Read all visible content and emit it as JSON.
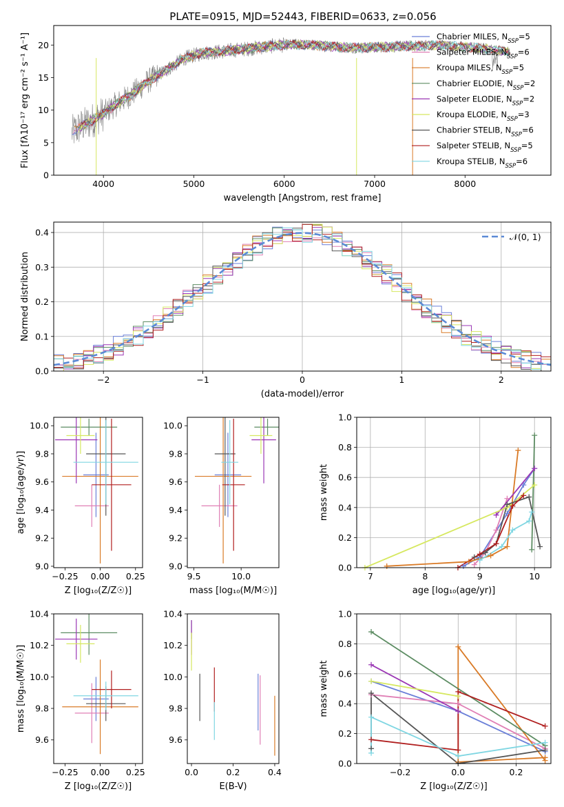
{
  "figure": {
    "title": "PLATE=0915, MJD=52443, FIBERID=0633, z=0.056",
    "palette": {
      "Chabrier MILES": "#6a7fd8",
      "Salpeter MILES": "#e07fb5",
      "Kroupa MILES": "#d97a26",
      "Chabrier ELODIE": "#5c8c62",
      "Salpeter ELODIE": "#9a36b4",
      "Kroupa ELODIE": "#d6e85f",
      "Chabrier STELIB": "#555555",
      "Salpeter STELIB": "#b01e1e",
      "Kroupa STELIB": "#7fd6e2"
    }
  },
  "chart_data": [
    {
      "type": "line",
      "id": "spectrum",
      "title": "PLATE=0915, MJD=52443, FIBERID=0633, z=0.056",
      "xlabel": "wavelength [Angstrom, rest frame]",
      "ylabel": "Flux [fλ10⁻¹⁷ erg cm⁻² s⁻¹ A⁻¹]",
      "xlim": [
        3450,
        8950
      ],
      "ylim": [
        0,
        23
      ],
      "xticks": [
        "4000",
        "5000",
        "6000",
        "7000",
        "8000"
      ],
      "yticks": [
        "0",
        "5",
        "10",
        "15",
        "20"
      ],
      "data_color": "#808080",
      "data_profile": {
        "x": [
          3650,
          3750,
          3850,
          3950,
          4050,
          4150,
          4300,
          4500,
          4700,
          4900,
          5100,
          5300,
          5500,
          5700,
          5900,
          6100,
          6300,
          6500,
          6700,
          6900,
          7100,
          7300,
          7500,
          7700,
          7900,
          8100,
          8300,
          8500
        ],
        "y": [
          6.5,
          7.5,
          8.2,
          9.0,
          10.0,
          11.0,
          12.3,
          14.5,
          16.2,
          18.0,
          18.8,
          19.0,
          19.3,
          19.6,
          19.9,
          20.1,
          20.0,
          19.8,
          19.6,
          19.6,
          19.7,
          19.8,
          19.9,
          20.0,
          19.8,
          19.6,
          19.3,
          18.9
        ]
      },
      "legend": {
        "position": "upper right",
        "entries": [
          "Chabrier MILES, N_SSP=5",
          "Salpeter MILES, N_SSP=6",
          "Kroupa MILES, N_SSP=5",
          "Chabrier ELODIE, N_SSP=2",
          "Salpeter ELODIE, N_SSP=2",
          "Kroupa ELODIE, N_SSP=3",
          "Chabrier STELIB, N_SSP=6",
          "Salpeter STELIB, N_SSP=5",
          "Kroupa STELIB, N_SSP=6"
        ],
        "labels": [
          {
            "pre": "Chabrier MILES, N",
            "sub": "SSP",
            "post": "=5"
          },
          {
            "pre": "Salpeter MILES, N",
            "sub": "SSP",
            "post": "=6"
          },
          {
            "pre": "Kroupa MILES, N",
            "sub": "SSP",
            "post": "=5"
          },
          {
            "pre": "Chabrier ELODIE, N",
            "sub": "SSP",
            "post": "=2"
          },
          {
            "pre": "Salpeter ELODIE, N",
            "sub": "SSP",
            "post": "=2"
          },
          {
            "pre": "Kroupa ELODIE, N",
            "sub": "SSP",
            "post": "=3"
          },
          {
            "pre": "Chabrier STELIB, N",
            "sub": "SSP",
            "post": "=6"
          },
          {
            "pre": "Salpeter STELIB, N",
            "sub": "SSP",
            "post": "=5"
          },
          {
            "pre": "Kroupa STELIB, N",
            "sub": "SSP",
            "post": "=6"
          }
        ]
      }
    },
    {
      "type": "line",
      "id": "residuals",
      "xlabel": "(data-model)/error",
      "ylabel": "Normed distribution",
      "xlim": [
        -2.5,
        2.5
      ],
      "ylim": [
        0,
        0.43
      ],
      "xticks": [
        "−2",
        "−1",
        "0",
        "1",
        "2"
      ],
      "yticks": [
        "0.0",
        "0.1",
        "0.2",
        "0.3",
        "0.4"
      ],
      "grid": true,
      "legend": {
        "position": "upper right",
        "entries": [
          "𝒩(0, 1)"
        ]
      },
      "reference_curve": {
        "name": "𝒩(0, 1)",
        "mean": 0,
        "sigma": 1,
        "style": "dashed",
        "color": "#5b8ad6"
      },
      "histogram_bin_width": 0.1
    },
    {
      "type": "scatter",
      "id": "age-vs-Z",
      "xlabel": "Z [log₁₀(Z/Z☉)]",
      "ylabel": "age  [log₁₀(age/yr)]",
      "xlim": [
        -0.33,
        0.3
      ],
      "ylim": [
        8.99,
        10.06
      ],
      "xticks": [
        "−0.25",
        "0.00",
        "0.25"
      ],
      "yticks": [
        "9.0",
        "9.2",
        "9.4",
        "9.6",
        "9.8",
        "10.0"
      ],
      "errorbars": [
        {
          "model": "Chabrier MILES",
          "x": -0.03,
          "xerr": 0.09,
          "y": 9.65,
          "yerr": 0.3
        },
        {
          "model": "Salpeter MILES",
          "x": -0.06,
          "xerr": 0.12,
          "y": 9.43,
          "yerr": 0.15
        },
        {
          "model": "Kroupa MILES",
          "x": 0.0,
          "xerr": 0.27,
          "y": 9.64,
          "yerr": 0.62
        },
        {
          "model": "Chabrier ELODIE",
          "x": -0.08,
          "xerr": 0.2,
          "y": 9.99,
          "yerr": 0.06
        },
        {
          "model": "Salpeter ELODIE",
          "x": -0.17,
          "xerr": 0.15,
          "y": 9.9,
          "yerr": 0.31
        },
        {
          "model": "Kroupa ELODIE",
          "x": -0.14,
          "xerr": 0.1,
          "y": 9.93,
          "yerr": 0.13
        },
        {
          "model": "Chabrier STELIB",
          "x": 0.04,
          "xerr": 0.14,
          "y": 9.8,
          "yerr": 0.44
        },
        {
          "model": "Salpeter STELIB",
          "x": 0.08,
          "xerr": 0.14,
          "y": 9.58,
          "yerr": 0.47
        },
        {
          "model": "Kroupa STELIB",
          "x": 0.04,
          "xerr": 0.23,
          "y": 9.74,
          "yerr": 0.3
        }
      ]
    },
    {
      "type": "scatter",
      "id": "age-vs-mass",
      "xlabel": "mass [log₁₀(M/M☉)]",
      "xlim": [
        9.43,
        10.4
      ],
      "ylim": [
        8.99,
        10.06
      ],
      "xticks": [
        "9.5",
        "10.0"
      ],
      "yticks": [
        "9.0",
        "9.2",
        "9.4",
        "9.6",
        "9.8",
        "10.0"
      ],
      "errorbars": [
        {
          "model": "Chabrier MILES",
          "x": 9.86,
          "xerr": 0.14,
          "y": 9.65,
          "yerr": 0.3
        },
        {
          "model": "Salpeter MILES",
          "x": 9.77,
          "xerr": 0.19,
          "y": 9.43,
          "yerr": 0.15
        },
        {
          "model": "Kroupa MILES",
          "x": 9.81,
          "xerr": 0.3,
          "y": 9.64,
          "yerr": 0.62
        },
        {
          "model": "Chabrier ELODIE",
          "x": 10.28,
          "xerr": 0.14,
          "y": 9.99,
          "yerr": 0.06
        },
        {
          "model": "Salpeter ELODIE",
          "x": 10.24,
          "xerr": 0.13,
          "y": 9.9,
          "yerr": 0.31
        },
        {
          "model": "Kroupa ELODIE",
          "x": 10.21,
          "xerr": 0.12,
          "y": 9.93,
          "yerr": 0.13
        },
        {
          "model": "Chabrier STELIB",
          "x": 9.83,
          "xerr": 0.11,
          "y": 9.8,
          "yerr": 0.44
        },
        {
          "model": "Salpeter STELIB",
          "x": 9.92,
          "xerr": 0.12,
          "y": 9.58,
          "yerr": 0.47
        },
        {
          "model": "Kroupa STELIB",
          "x": 9.88,
          "xerr": 0.09,
          "y": 9.74,
          "yerr": 0.3
        }
      ]
    },
    {
      "type": "line",
      "id": "mass-weight-vs-age",
      "xlabel": "age  [log₁₀(age/yr)]",
      "ylabel": "mass weight",
      "xlim": [
        6.75,
        10.3
      ],
      "ylim": [
        0,
        1.0
      ],
      "xticks": [
        "7",
        "8",
        "9",
        "10"
      ],
      "yticks": [
        "0.0",
        "0.2",
        "0.4",
        "0.6",
        "0.8",
        "1.0"
      ],
      "grid": true,
      "series": [
        {
          "model": "Chabrier MILES",
          "x": [
            8.7,
            9.0,
            9.5,
            9.8,
            10.0
          ],
          "y": [
            0.01,
            0.07,
            0.36,
            0.55,
            0.66
          ]
        },
        {
          "model": "Salpeter MILES",
          "x": [
            8.9,
            9.1,
            9.3,
            9.5
          ],
          "y": [
            0.02,
            0.1,
            0.25,
            0.46
          ]
        },
        {
          "model": "Kroupa MILES",
          "x": [
            7.3,
            8.8,
            9.2,
            9.5,
            9.7
          ],
          "y": [
            0.01,
            0.04,
            0.08,
            0.14,
            0.78
          ]
        },
        {
          "model": "Chabrier ELODIE",
          "x": [
            9.95,
            10.0
          ],
          "y": [
            0.12,
            0.88
          ]
        },
        {
          "model": "Salpeter ELODIE",
          "x": [
            9.3,
            10.0
          ],
          "y": [
            0.35,
            0.66
          ]
        },
        {
          "model": "Kroupa ELODIE",
          "x": [
            6.9,
            9.5,
            10.0
          ],
          "y": [
            0.0,
            0.4,
            0.55
          ]
        },
        {
          "model": "Chabrier STELIB",
          "x": [
            8.9,
            9.1,
            9.3,
            9.5,
            9.9,
            10.1
          ],
          "y": [
            0.07,
            0.1,
            0.16,
            0.42,
            0.47,
            0.14
          ]
        },
        {
          "model": "Salpeter STELIB",
          "x": [
            8.6,
            9.0,
            9.3,
            9.6,
            9.8
          ],
          "y": [
            0.0,
            0.09,
            0.16,
            0.41,
            0.48
          ]
        },
        {
          "model": "Kroupa STELIB",
          "x": [
            9.0,
            9.4,
            9.6,
            9.9,
            9.95
          ],
          "y": [
            0.05,
            0.14,
            0.25,
            0.31,
            0.37
          ]
        }
      ]
    },
    {
      "type": "scatter",
      "id": "mass-vs-Z",
      "xlabel": "Z [log₁₀(Z/Z☉)]",
      "ylabel": "mass [log₁₀(M/M☉)]",
      "xlim": [
        -0.33,
        0.3
      ],
      "ylim": [
        9.45,
        10.4
      ],
      "xticks": [
        "−0.25",
        "0.00",
        "0.25"
      ],
      "yticks": [
        "9.6",
        "9.8",
        "10.0",
        "10.2",
        "10.4"
      ],
      "errorbars": [
        {
          "model": "Chabrier MILES",
          "x": -0.03,
          "xerr": 0.09,
          "y": 9.86,
          "yerr": 0.14
        },
        {
          "model": "Salpeter MILES",
          "x": -0.06,
          "xerr": 0.12,
          "y": 9.77,
          "yerr": 0.19
        },
        {
          "model": "Kroupa MILES",
          "x": 0.0,
          "xerr": 0.27,
          "y": 9.81,
          "yerr": 0.3
        },
        {
          "model": "Chabrier ELODIE",
          "x": -0.08,
          "xerr": 0.2,
          "y": 10.28,
          "yerr": 0.14
        },
        {
          "model": "Salpeter ELODIE",
          "x": -0.17,
          "xerr": 0.15,
          "y": 10.24,
          "yerr": 0.13
        },
        {
          "model": "Kroupa ELODIE",
          "x": -0.14,
          "xerr": 0.1,
          "y": 10.21,
          "yerr": 0.12
        },
        {
          "model": "Chabrier STELIB",
          "x": 0.04,
          "xerr": 0.14,
          "y": 9.83,
          "yerr": 0.11
        },
        {
          "model": "Salpeter STELIB",
          "x": 0.08,
          "xerr": 0.14,
          "y": 9.92,
          "yerr": 0.12
        },
        {
          "model": "Kroupa STELIB",
          "x": 0.04,
          "xerr": 0.23,
          "y": 9.88,
          "yerr": 0.09
        }
      ]
    },
    {
      "type": "scatter",
      "id": "mass-vs-ebv",
      "xlabel": "E(B-V)",
      "xlim": [
        -0.02,
        0.42
      ],
      "ylim": [
        9.45,
        10.4
      ],
      "xticks": [
        "0.0",
        "0.2",
        "0.4"
      ],
      "yticks": [
        "9.6",
        "9.8",
        "10.0",
        "10.2",
        "10.4"
      ],
      "errorbars": [
        {
          "model": "Chabrier MILES",
          "x": 0.32,
          "y": 9.84,
          "yerr": 0.18
        },
        {
          "model": "Salpeter MILES",
          "x": 0.33,
          "y": 9.79,
          "yerr": 0.22
        },
        {
          "model": "Kroupa MILES",
          "x": 0.4,
          "y": 9.69,
          "yerr": 0.19
        },
        {
          "model": "Chabrier ELODIE",
          "x": 0.0,
          "y": 10.3,
          "yerr": 0.06
        },
        {
          "model": "Salpeter ELODIE",
          "x": 0.0,
          "y": 10.25,
          "yerr": 0.11
        },
        {
          "model": "Kroupa ELODIE",
          "x": 0.0,
          "y": 10.16,
          "yerr": 0.12
        },
        {
          "model": "Chabrier STELIB",
          "x": 0.04,
          "y": 9.87,
          "yerr": 0.15
        },
        {
          "model": "Salpeter STELIB",
          "x": 0.11,
          "y": 9.92,
          "yerr": 0.14
        },
        {
          "model": "Kroupa STELIB",
          "x": 0.11,
          "y": 9.72,
          "yerr": 0.12
        }
      ]
    },
    {
      "type": "line",
      "id": "mass-weight-vs-Z",
      "xlabel": "Z [log₁₀(Z/Z☉)]",
      "ylabel": "mass weight",
      "xlim": [
        -0.35,
        0.32
      ],
      "ylim": [
        0,
        1.0
      ],
      "xticks": [
        "−0.2",
        "0.0",
        "0.2"
      ],
      "yticks": [
        "0.0",
        "0.2",
        "0.4",
        "0.6",
        "0.8",
        "1.0"
      ],
      "grid": true,
      "series": [
        {
          "model": "Chabrier MILES",
          "x": [
            -0.3,
            0.0,
            0.3
          ],
          "y": [
            0.55,
            0.35,
            0.08
          ]
        },
        {
          "model": "Salpeter MILES",
          "x": [
            -0.3,
            0.0,
            0.3
          ],
          "y": [
            0.46,
            0.4,
            0.1
          ]
        },
        {
          "model": "Kroupa MILES",
          "x": [
            0.3,
            0.0,
            0.0,
            0.3
          ],
          "y": [
            0.02,
            0.78,
            0.01,
            0.04
          ]
        },
        {
          "model": "Chabrier ELODIE",
          "x": [
            -0.3,
            0.3
          ],
          "y": [
            0.88,
            0.12
          ]
        },
        {
          "model": "Salpeter ELODIE",
          "x": [
            -0.3,
            0.0
          ],
          "y": [
            0.66,
            0.35
          ]
        },
        {
          "model": "Kroupa ELODIE",
          "x": [
            -0.3,
            0.0
          ],
          "y": [
            0.55,
            0.45
          ]
        },
        {
          "model": "Chabrier STELIB",
          "x": [
            -0.3,
            -0.3,
            0.0,
            0.3
          ],
          "y": [
            0.1,
            0.47,
            0.0,
            0.09
          ]
        },
        {
          "model": "Salpeter STELIB",
          "x": [
            -0.3,
            0.0,
            0.0,
            0.3
          ],
          "y": [
            0.16,
            0.09,
            0.48,
            0.25
          ]
        },
        {
          "model": "Kroupa STELIB",
          "x": [
            -0.3,
            -0.3,
            0.0,
            0.3
          ],
          "y": [
            0.07,
            0.31,
            0.05,
            0.14
          ]
        }
      ]
    }
  ]
}
